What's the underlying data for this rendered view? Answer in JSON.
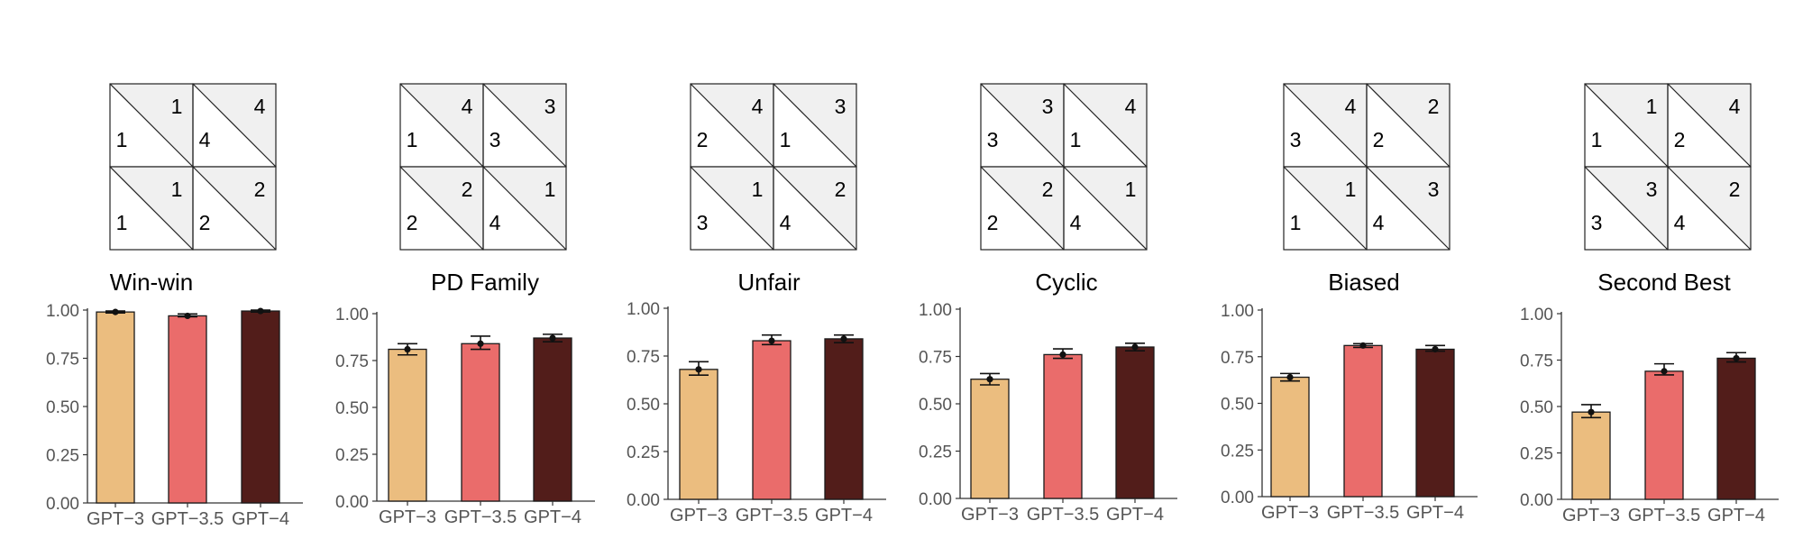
{
  "colors": {
    "GPT-3": "#EBBD7F",
    "GPT-3.5": "#EA6C6B",
    "GPT-4": "#521D1A",
    "matrix_shade": "#f0f0f0",
    "axis": "#333333"
  },
  "chart_data": [
    {
      "type": "bar",
      "title": "Win-win",
      "categories": [
        "GPT−3",
        "GPT−3.5",
        "GPT−4"
      ],
      "values": [
        0.99,
        0.97,
        0.995
      ],
      "error_low": [
        0.985,
        0.965,
        0.99
      ],
      "error_high": [
        0.995,
        0.98,
        1.0
      ],
      "ylim": [
        0,
        1
      ],
      "yticks": [
        "0.00",
        "0.25",
        "0.50",
        "0.75",
        "1.00"
      ],
      "payoff_matrix": {
        "cells": [
          {
            "top": "1",
            "bottom": "1"
          },
          {
            "top": "4",
            "bottom": "4"
          },
          {
            "top": "1",
            "bottom": "1"
          },
          {
            "top": "2",
            "bottom": "2"
          }
        ]
      }
    },
    {
      "type": "bar",
      "title": "PD Family",
      "categories": [
        "GPT−3",
        "GPT−3.5",
        "GPT−4"
      ],
      "values": [
        0.81,
        0.84,
        0.87
      ],
      "error_low": [
        0.78,
        0.81,
        0.85
      ],
      "error_high": [
        0.84,
        0.88,
        0.89
      ],
      "ylim": [
        0,
        1
      ],
      "yticks": [
        "0.00",
        "0.25",
        "0.50",
        "0.75",
        "1.00"
      ],
      "payoff_matrix": {
        "cells": [
          {
            "top": "4",
            "bottom": "1"
          },
          {
            "top": "3",
            "bottom": "3"
          },
          {
            "top": "2",
            "bottom": "2"
          },
          {
            "top": "1",
            "bottom": "4"
          }
        ]
      }
    },
    {
      "type": "bar",
      "title": "Unfair",
      "categories": [
        "GPT−3",
        "GPT−3.5",
        "GPT−4"
      ],
      "values": [
        0.68,
        0.83,
        0.84
      ],
      "error_low": [
        0.65,
        0.81,
        0.82
      ],
      "error_high": [
        0.72,
        0.86,
        0.86
      ],
      "ylim": [
        0,
        1
      ],
      "yticks": [
        "0.00",
        "0.25",
        "0.50",
        "0.75",
        "1.00"
      ],
      "payoff_matrix": {
        "cells": [
          {
            "top": "4",
            "bottom": "2"
          },
          {
            "top": "3",
            "bottom": "1"
          },
          {
            "top": "1",
            "bottom": "3"
          },
          {
            "top": "2",
            "bottom": "4"
          }
        ]
      }
    },
    {
      "type": "bar",
      "title": "Cyclic",
      "categories": [
        "GPT−3",
        "GPT−3.5",
        "GPT−4"
      ],
      "values": [
        0.63,
        0.76,
        0.8
      ],
      "error_low": [
        0.6,
        0.74,
        0.78
      ],
      "error_high": [
        0.66,
        0.79,
        0.82
      ],
      "ylim": [
        0,
        1
      ],
      "yticks": [
        "0.00",
        "0.25",
        "0.50",
        "0.75",
        "1.00"
      ],
      "payoff_matrix": {
        "cells": [
          {
            "top": "3",
            "bottom": "3"
          },
          {
            "top": "4",
            "bottom": "1"
          },
          {
            "top": "2",
            "bottom": "2"
          },
          {
            "top": "1",
            "bottom": "4"
          }
        ]
      }
    },
    {
      "type": "bar",
      "title": "Biased",
      "categories": [
        "GPT−3",
        "GPT−3.5",
        "GPT−4"
      ],
      "values": [
        0.64,
        0.81,
        0.79
      ],
      "error_low": [
        0.62,
        0.8,
        0.78
      ],
      "error_high": [
        0.66,
        0.82,
        0.81
      ],
      "ylim": [
        0,
        1
      ],
      "yticks": [
        "0.00",
        "0.25",
        "0.50",
        "0.75",
        "1.00"
      ],
      "payoff_matrix": {
        "cells": [
          {
            "top": "4",
            "bottom": "3"
          },
          {
            "top": "2",
            "bottom": "2"
          },
          {
            "top": "1",
            "bottom": "1"
          },
          {
            "top": "3",
            "bottom": "4"
          }
        ]
      }
    },
    {
      "type": "bar",
      "title": "Second Best",
      "categories": [
        "GPT−3",
        "GPT−3.5",
        "GPT−4"
      ],
      "values": [
        0.47,
        0.69,
        0.76
      ],
      "error_low": [
        0.44,
        0.67,
        0.74
      ],
      "error_high": [
        0.51,
        0.73,
        0.79
      ],
      "ylim": [
        0,
        1
      ],
      "yticks": [
        "0.00",
        "0.25",
        "0.50",
        "0.75",
        "1.00"
      ],
      "payoff_matrix": {
        "cells": [
          {
            "top": "1",
            "bottom": "1"
          },
          {
            "top": "4",
            "bottom": "2"
          },
          {
            "top": "3",
            "bottom": "3"
          },
          {
            "top": "2",
            "bottom": "4"
          }
        ]
      }
    }
  ]
}
